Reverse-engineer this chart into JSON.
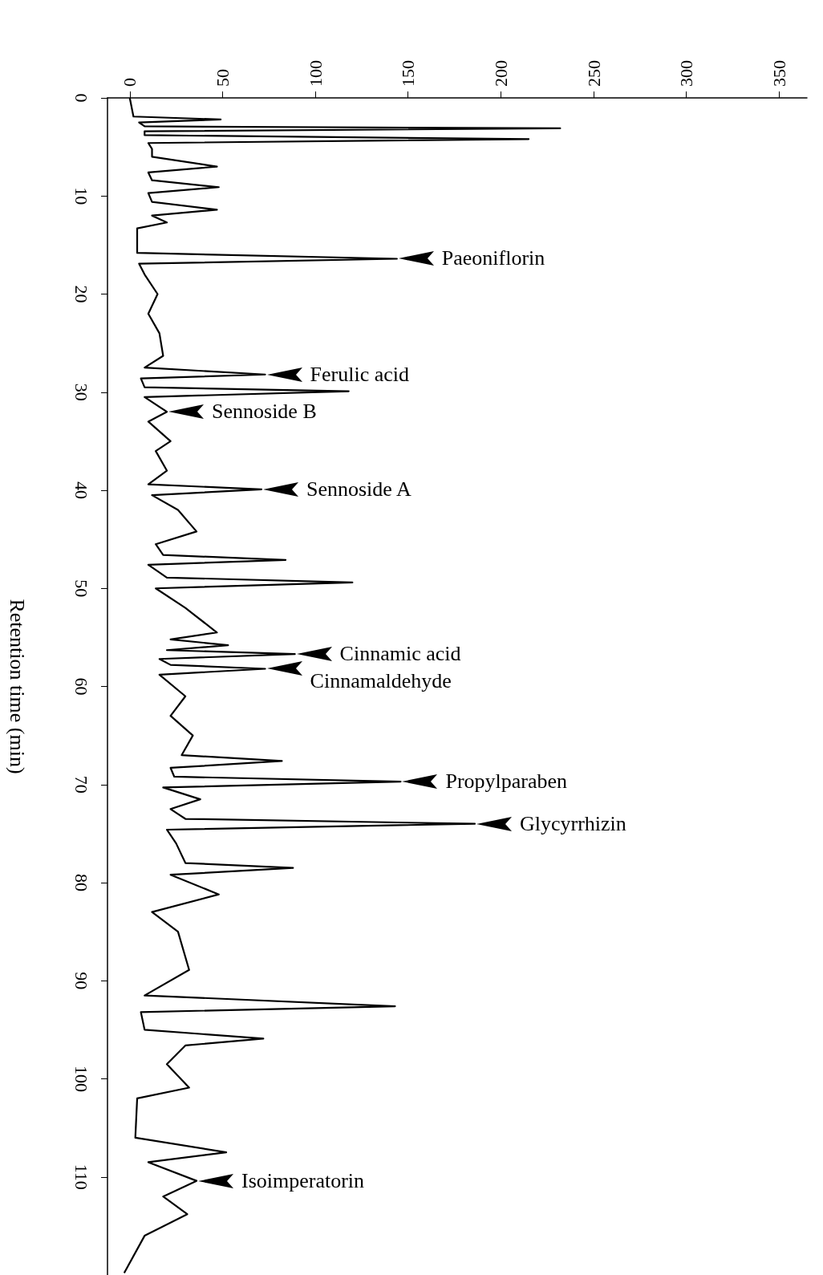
{
  "chart_data": {
    "type": "line",
    "ylabel": "Retention time (min)",
    "values": [
      0,
      1.9,
      2.2,
      2.5,
      2.9,
      3.1,
      3.4,
      3.8,
      4.2,
      4.6,
      5.2,
      6.0,
      7.0,
      7.6,
      8.4,
      9.1,
      9.7,
      10.6,
      11.4,
      12.0,
      12.7,
      13.3,
      15.8,
      16.4,
      16.9,
      18.0,
      20.0,
      22.0,
      24.0,
      26.3,
      27.5,
      28.2,
      28.6,
      29.5,
      29.9,
      30.5,
      32.0,
      33.0,
      35.0,
      36.0,
      38.0,
      39.4,
      39.9,
      40.5,
      42.0,
      44.2,
      45.5,
      46.6,
      47.1,
      47.6,
      48.9,
      49.4,
      50.0,
      52.0,
      54.5,
      55.2,
      55.8,
      56.3,
      56.7,
      57.2,
      57.8,
      58.2,
      58.8,
      61.0,
      63.0,
      65.0,
      67.0,
      67.6,
      68.3,
      69.2,
      69.7,
      70.3,
      71.5,
      72.5,
      73.5,
      74.0,
      74.6,
      76.0,
      78.0,
      78.5,
      79.2,
      81.2,
      83.0,
      85.0,
      88.9,
      91.5,
      92.6,
      93.2,
      95.0,
      95.9,
      96.6,
      98.5,
      100.9,
      102.0,
      106.0,
      107.5,
      108.5,
      110.4,
      112.0,
      113.8,
      116.0,
      119.8
    ],
    "x": [
      0,
      2,
      49,
      5,
      8,
      232,
      8,
      8,
      215,
      10,
      12,
      12,
      47,
      10,
      12,
      48,
      10,
      12,
      47,
      12,
      20,
      4,
      4,
      144,
      5,
      8,
      15,
      10,
      16,
      18,
      8,
      73,
      6,
      8,
      118,
      8,
      20,
      10,
      22,
      14,
      20,
      10,
      71,
      12,
      26,
      36,
      14,
      18,
      84,
      10,
      20,
      120,
      14,
      30,
      47,
      22,
      53,
      20,
      89,
      16,
      22,
      73,
      16,
      30,
      22,
      34,
      28,
      82,
      22,
      24,
      146,
      18,
      38,
      22,
      30,
      186,
      20,
      25,
      30,
      88,
      22,
      48,
      12,
      26,
      32,
      8,
      143,
      6,
      8,
      72,
      30,
      20,
      32,
      4,
      3,
      52,
      10,
      36,
      18,
      31,
      8,
      -3
    ],
    "color": "#000000",
    "ylim": [
      120,
      0
    ],
    "yticks": [
      0,
      10,
      20,
      30,
      40,
      50,
      60,
      70,
      80,
      90,
      100,
      110
    ],
    "xlim": [
      -12,
      365
    ],
    "xticks": [
      0,
      50,
      100,
      150,
      200,
      250,
      300,
      350
    ],
    "annotations": [
      {
        "text": "Paeoniflorin",
        "x": 144,
        "y": 16.4
      },
      {
        "text": "Ferulic acid",
        "x": 73,
        "y": 28.2
      },
      {
        "text": "Sennoside B",
        "x": 20,
        "y": 32.0
      },
      {
        "text": "Sennoside A",
        "x": 71,
        "y": 39.9
      },
      {
        "text": "Cinnamic acid",
        "x": 89,
        "y": 56.7
      },
      {
        "text": "Cinnamaldehyde",
        "x": 73,
        "y": 58.2
      },
      {
        "text": "Propylparaben",
        "x": 146,
        "y": 69.7
      },
      {
        "text": "Glycyrrhizin",
        "x": 186,
        "y": 74.0
      },
      {
        "text": "Isoimperatorin",
        "x": 36,
        "y": 110.4
      }
    ]
  }
}
